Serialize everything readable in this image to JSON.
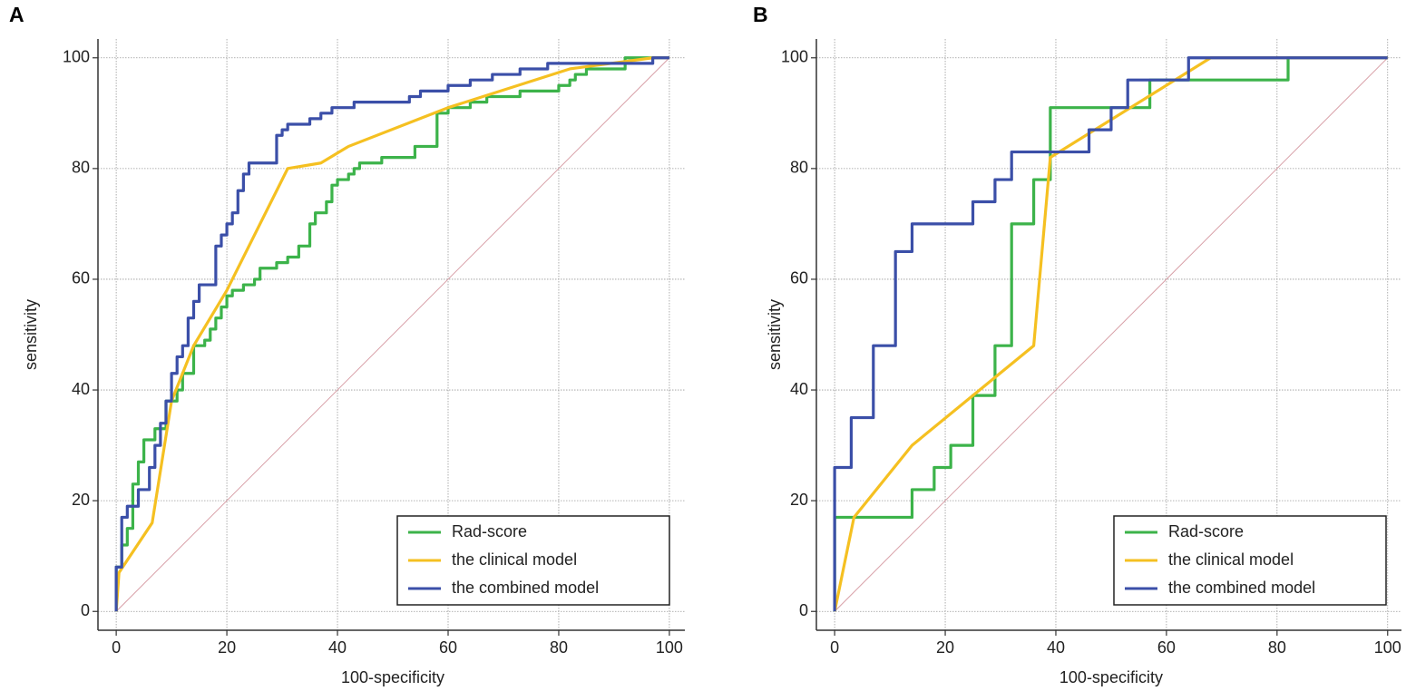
{
  "chart_data": [
    {
      "type": "line",
      "title": "A",
      "x_label": "100-specificity",
      "y_label": "sensitivity",
      "xlim": [
        -3.3,
        102.8
      ],
      "ylim": [
        -3.4,
        103.4
      ],
      "xticks": [
        0,
        20,
        40,
        60,
        80,
        100
      ],
      "yticks": [
        0,
        20,
        40,
        60,
        80,
        100
      ],
      "grid": true,
      "legend": "lower right",
      "diagonal_color": "#d8a0a8",
      "series": [
        {
          "name": "Rad-score",
          "color": "#3cb34a",
          "x": [
            0,
            0,
            1,
            1,
            2,
            2,
            3,
            3,
            4,
            4,
            5,
            5,
            7,
            7,
            9,
            9,
            11,
            11,
            12,
            12,
            14,
            14,
            16,
            16,
            17,
            17,
            18,
            18,
            19,
            19,
            20,
            20,
            21,
            21,
            23,
            23,
            25,
            25,
            26,
            26,
            29,
            29,
            31,
            31,
            33,
            33,
            35,
            35,
            36,
            36,
            38,
            38,
            39,
            39,
            40,
            40,
            42,
            42,
            43,
            43,
            44,
            44,
            48,
            48,
            54,
            54,
            58,
            58,
            60,
            60,
            64,
            64,
            67,
            67,
            73,
            73,
            80,
            80,
            82,
            82,
            83,
            83,
            85,
            85,
            92,
            92,
            100
          ],
          "values": [
            0,
            8,
            8,
            12,
            12,
            15,
            15,
            23,
            23,
            27,
            27,
            31,
            31,
            33,
            33,
            38,
            38,
            40,
            40,
            43,
            43,
            48,
            48,
            49,
            49,
            51,
            51,
            53,
            53,
            55,
            55,
            57,
            57,
            58,
            58,
            59,
            59,
            60,
            60,
            62,
            62,
            63,
            63,
            64,
            64,
            66,
            66,
            70,
            70,
            72,
            72,
            74,
            74,
            77,
            77,
            78,
            78,
            79,
            79,
            80,
            80,
            81,
            81,
            82,
            82,
            84,
            84,
            90,
            90,
            91,
            91,
            92,
            92,
            93,
            93,
            94,
            94,
            95,
            95,
            96,
            96,
            97,
            97,
            98,
            98,
            100,
            100
          ]
        },
        {
          "name": "the clinical model",
          "color": "#f5c021",
          "x": [
            0,
            0.5,
            6.5,
            10,
            14,
            20,
            31,
            37,
            42,
            60,
            82,
            97,
            100
          ],
          "values": [
            0,
            7,
            16,
            38,
            48,
            58,
            80,
            81,
            84,
            91,
            98,
            100,
            100
          ]
        },
        {
          "name": "the combined model",
          "color": "#3b4fa8",
          "x": [
            0,
            0,
            1,
            1,
            2,
            2,
            4,
            4,
            6,
            6,
            7,
            7,
            8,
            8,
            9,
            9,
            10,
            10,
            11,
            11,
            12,
            12,
            13,
            13,
            14,
            14,
            15,
            15,
            18,
            18,
            19,
            19,
            20,
            20,
            21,
            21,
            22,
            22,
            23,
            23,
            24,
            24,
            29,
            29,
            30,
            30,
            31,
            31,
            35,
            35,
            37,
            37,
            39,
            39,
            43,
            43,
            53,
            53,
            55,
            55,
            60,
            60,
            64,
            64,
            68,
            68,
            73,
            73,
            78,
            78,
            97,
            97,
            100
          ],
          "values": [
            0,
            8,
            8,
            17,
            17,
            19,
            19,
            22,
            22,
            26,
            26,
            30,
            30,
            34,
            34,
            38,
            38,
            43,
            43,
            46,
            46,
            48,
            48,
            53,
            53,
            56,
            56,
            59,
            59,
            66,
            66,
            68,
            68,
            70,
            70,
            72,
            72,
            76,
            76,
            79,
            79,
            81,
            81,
            86,
            86,
            87,
            87,
            88,
            88,
            89,
            89,
            90,
            90,
            91,
            91,
            92,
            92,
            93,
            93,
            94,
            94,
            95,
            95,
            96,
            96,
            97,
            97,
            98,
            98,
            99,
            99,
            100,
            100
          ]
        }
      ]
    },
    {
      "type": "line",
      "title": "B",
      "x_label": "100-specificity",
      "y_label": "sensitivity",
      "xlim": [
        -3.3,
        102.5
      ],
      "ylim": [
        -3.4,
        103.4
      ],
      "xticks": [
        0,
        20,
        40,
        60,
        80,
        100
      ],
      "yticks": [
        0,
        20,
        40,
        60,
        80,
        100
      ],
      "grid": true,
      "legend": "lower right",
      "diagonal_color": "#d8a0a8",
      "series": [
        {
          "name": "Rad-score",
          "color": "#3cb34a",
          "x": [
            0,
            0,
            14,
            14,
            18,
            18,
            21,
            21,
            25,
            25,
            29,
            29,
            32,
            32,
            36,
            36,
            39,
            39,
            57,
            57,
            82,
            82,
            100
          ],
          "values": [
            0,
            17,
            17,
            22,
            22,
            26,
            26,
            30,
            30,
            39,
            39,
            48,
            48,
            70,
            70,
            78,
            78,
            91,
            91,
            96,
            96,
            100,
            100
          ]
        },
        {
          "name": "the clinical model",
          "color": "#f5c021",
          "x": [
            0,
            3.5,
            14,
            36,
            39,
            68,
            100
          ],
          "values": [
            0,
            17,
            30,
            48,
            82,
            100,
            100
          ]
        },
        {
          "name": "the combined model",
          "color": "#3b4fa8",
          "x": [
            0,
            0,
            3,
            3,
            7,
            7,
            11,
            11,
            14,
            14,
            25,
            25,
            29,
            29,
            32,
            32,
            46,
            46,
            50,
            50,
            53,
            53,
            64,
            64,
            100
          ],
          "values": [
            0,
            26,
            26,
            35,
            35,
            48,
            48,
            65,
            65,
            70,
            70,
            74,
            74,
            78,
            78,
            83,
            83,
            87,
            87,
            91,
            91,
            96,
            96,
            100,
            100
          ]
        }
      ]
    }
  ]
}
